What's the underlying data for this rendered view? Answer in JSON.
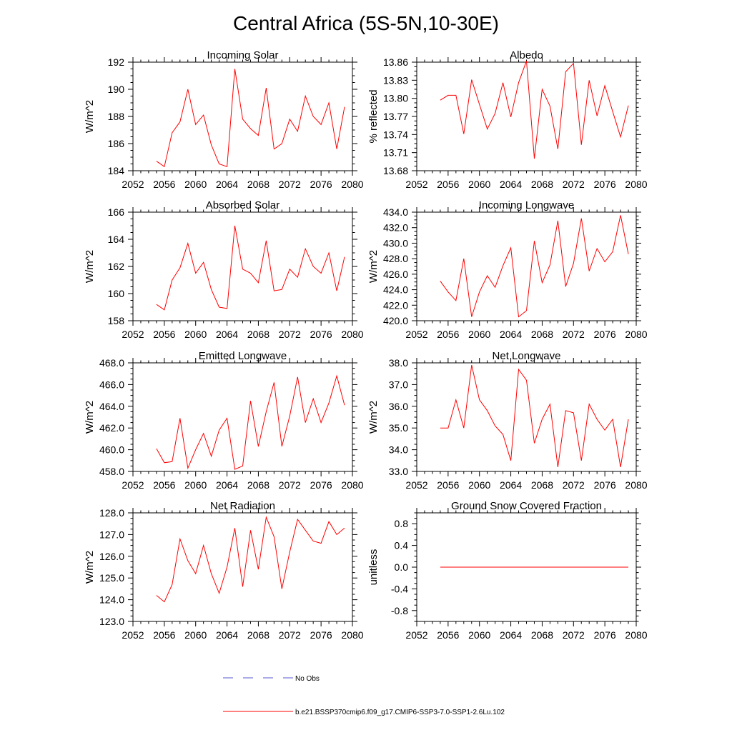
{
  "figure": {
    "title": "Central Africa (5S-5N,10-30E)",
    "legend": [
      {
        "label": "No Obs",
        "color": "#5a5ad2",
        "style": "dashed"
      },
      {
        "label": "b.e21.BSSP370cmip6.f09_g17.CMIP6-SSP3-7.0-SSP1-2.6Lu.102",
        "color": "#ff0000",
        "style": "solid"
      }
    ]
  },
  "chart_data": [
    {
      "type": "line",
      "title": "Incoming Solar",
      "xlabel": "",
      "ylabel": "W/m^2",
      "xlim": [
        2052,
        2080
      ],
      "ylim": [
        184,
        192
      ],
      "xticks": [
        2052,
        2056,
        2060,
        2064,
        2068,
        2072,
        2076,
        2080
      ],
      "yticks": [
        184,
        186,
        188,
        190,
        192
      ],
      "ydecimals": 0,
      "x": [
        2055,
        2056,
        2057,
        2058,
        2059,
        2060,
        2061,
        2062,
        2063,
        2064,
        2065,
        2066,
        2067,
        2068,
        2069,
        2070,
        2071,
        2072,
        2073,
        2074,
        2075,
        2076,
        2077,
        2078,
        2079
      ],
      "series": [
        {
          "color": "#ff0000",
          "values": [
            184.7,
            184.3,
            186.8,
            187.6,
            190.0,
            187.4,
            188.1,
            185.9,
            184.5,
            184.3,
            191.5,
            187.8,
            187.1,
            186.6,
            190.1,
            185.6,
            186.0,
            187.8,
            186.9,
            189.5,
            188.0,
            187.4,
            189.0,
            185.6,
            188.7
          ]
        }
      ]
    },
    {
      "type": "line",
      "title": "Albedo",
      "xlabel": "",
      "ylabel": "% reflected",
      "xlim": [
        2052,
        2080
      ],
      "ylim": [
        13.68,
        13.86
      ],
      "xticks": [
        2052,
        2056,
        2060,
        2064,
        2068,
        2072,
        2076,
        2080
      ],
      "yticks": [
        13.68,
        13.71,
        13.74,
        13.77,
        13.8,
        13.83,
        13.86
      ],
      "ydecimals": 2,
      "x": [
        2055,
        2056,
        2057,
        2058,
        2059,
        2060,
        2061,
        2062,
        2063,
        2064,
        2065,
        2066,
        2067,
        2068,
        2069,
        2070,
        2071,
        2072,
        2073,
        2074,
        2075,
        2076,
        2077,
        2078,
        2079
      ],
      "series": [
        {
          "color": "#ff0000",
          "values": [
            13.797,
            13.805,
            13.805,
            13.741,
            13.831,
            13.79,
            13.749,
            13.775,
            13.826,
            13.769,
            13.826,
            13.862,
            13.7,
            13.815,
            13.787,
            13.716,
            13.844,
            13.858,
            13.723,
            13.83,
            13.771,
            13.821,
            13.778,
            13.736,
            13.788
          ]
        }
      ]
    },
    {
      "type": "line",
      "title": "Absorbed Solar",
      "xlabel": "",
      "ylabel": "W/m^2",
      "xlim": [
        2052,
        2080
      ],
      "ylim": [
        158,
        166
      ],
      "xticks": [
        2052,
        2056,
        2060,
        2064,
        2068,
        2072,
        2076,
        2080
      ],
      "yticks": [
        158,
        160,
        162,
        164,
        166
      ],
      "ydecimals": 0,
      "x": [
        2055,
        2056,
        2057,
        2058,
        2059,
        2060,
        2061,
        2062,
        2063,
        2064,
        2065,
        2066,
        2067,
        2068,
        2069,
        2070,
        2071,
        2072,
        2073,
        2074,
        2075,
        2076,
        2077,
        2078,
        2079
      ],
      "series": [
        {
          "color": "#ff0000",
          "values": [
            159.2,
            158.8,
            161.0,
            161.9,
            163.7,
            161.5,
            162.3,
            160.3,
            159.0,
            158.9,
            165.0,
            161.8,
            161.5,
            160.8,
            163.9,
            160.2,
            160.3,
            161.8,
            161.2,
            163.3,
            162.0,
            161.5,
            163.0,
            160.2,
            162.7
          ]
        }
      ]
    },
    {
      "type": "line",
      "title": "Incoming Longwave",
      "xlabel": "",
      "ylabel": "W/m^2",
      "xlim": [
        2052,
        2080
      ],
      "ylim": [
        420.0,
        434.0
      ],
      "xticks": [
        2052,
        2056,
        2060,
        2064,
        2068,
        2072,
        2076,
        2080
      ],
      "yticks": [
        420.0,
        422.0,
        424.0,
        426.0,
        428.0,
        430.0,
        432.0,
        434.0
      ],
      "ydecimals": 1,
      "x": [
        2055,
        2056,
        2057,
        2058,
        2059,
        2060,
        2061,
        2062,
        2063,
        2064,
        2065,
        2066,
        2067,
        2068,
        2069,
        2070,
        2071,
        2072,
        2073,
        2074,
        2075,
        2076,
        2077,
        2078,
        2079
      ],
      "series": [
        {
          "color": "#ff0000",
          "values": [
            425.1,
            423.7,
            422.6,
            428.0,
            420.5,
            423.7,
            425.8,
            424.3,
            427.1,
            429.4,
            420.5,
            421.3,
            430.3,
            424.9,
            427.2,
            432.9,
            424.4,
            427.4,
            433.2,
            426.4,
            429.3,
            427.6,
            428.9,
            433.6,
            428.6
          ]
        }
      ]
    },
    {
      "type": "line",
      "title": "Emitted Longwave",
      "xlabel": "",
      "ylabel": "W/m^2",
      "xlim": [
        2052,
        2080
      ],
      "ylim": [
        458.0,
        468.0
      ],
      "xticks": [
        2052,
        2056,
        2060,
        2064,
        2068,
        2072,
        2076,
        2080
      ],
      "yticks": [
        458.0,
        460.0,
        462.0,
        464.0,
        466.0,
        468.0
      ],
      "ydecimals": 1,
      "x": [
        2055,
        2056,
        2057,
        2058,
        2059,
        2060,
        2061,
        2062,
        2063,
        2064,
        2065,
        2066,
        2067,
        2068,
        2069,
        2070,
        2071,
        2072,
        2073,
        2074,
        2075,
        2076,
        2077,
        2078,
        2079
      ],
      "series": [
        {
          "color": "#ff0000",
          "values": [
            460.1,
            458.8,
            458.9,
            462.9,
            458.3,
            460.0,
            461.5,
            459.4,
            461.8,
            462.9,
            458.2,
            458.5,
            464.5,
            460.3,
            463.5,
            466.2,
            460.3,
            463.1,
            466.7,
            462.5,
            464.7,
            462.5,
            464.3,
            466.8,
            464.1
          ]
        }
      ]
    },
    {
      "type": "line",
      "title": "Net Longwave",
      "xlabel": "",
      "ylabel": "W/m^2",
      "xlim": [
        2052,
        2080
      ],
      "ylim": [
        33.0,
        38.0
      ],
      "xticks": [
        2052,
        2056,
        2060,
        2064,
        2068,
        2072,
        2076,
        2080
      ],
      "yticks": [
        33.0,
        34.0,
        35.0,
        36.0,
        37.0,
        38.0
      ],
      "ydecimals": 1,
      "x": [
        2055,
        2056,
        2057,
        2058,
        2059,
        2060,
        2061,
        2062,
        2063,
        2064,
        2065,
        2066,
        2067,
        2068,
        2069,
        2070,
        2071,
        2072,
        2073,
        2074,
        2075,
        2076,
        2077,
        2078,
        2079
      ],
      "series": [
        {
          "color": "#ff0000",
          "values": [
            35.0,
            35.0,
            36.3,
            35.0,
            37.9,
            36.3,
            35.8,
            35.1,
            34.7,
            33.5,
            37.7,
            37.2,
            34.3,
            35.4,
            36.1,
            33.2,
            35.8,
            35.7,
            33.5,
            36.1,
            35.4,
            34.9,
            35.4,
            33.2,
            35.4
          ]
        }
      ]
    },
    {
      "type": "line",
      "title": "Net Radiation",
      "xlabel": "",
      "ylabel": "W/m^2",
      "xlim": [
        2052,
        2080
      ],
      "ylim": [
        123.0,
        128.0
      ],
      "xticks": [
        2052,
        2056,
        2060,
        2064,
        2068,
        2072,
        2076,
        2080
      ],
      "yticks": [
        123.0,
        124.0,
        125.0,
        126.0,
        127.0,
        128.0
      ],
      "ydecimals": 1,
      "x": [
        2055,
        2056,
        2057,
        2058,
        2059,
        2060,
        2061,
        2062,
        2063,
        2064,
        2065,
        2066,
        2067,
        2068,
        2069,
        2070,
        2071,
        2072,
        2073,
        2074,
        2075,
        2076,
        2077,
        2078,
        2079
      ],
      "series": [
        {
          "color": "#ff0000",
          "values": [
            124.2,
            123.9,
            124.7,
            126.8,
            125.8,
            125.2,
            126.5,
            125.2,
            124.3,
            125.5,
            127.3,
            124.6,
            127.2,
            125.4,
            127.8,
            126.9,
            124.5,
            126.2,
            127.7,
            127.2,
            126.7,
            126.6,
            127.6,
            127.0,
            127.3
          ]
        }
      ]
    },
    {
      "type": "line",
      "title": "Ground Snow Covered Fraction",
      "xlabel": "",
      "ylabel": "unitless",
      "xlim": [
        2052,
        2080
      ],
      "ylim": [
        -1.0,
        1.0
      ],
      "xticks": [
        2052,
        2056,
        2060,
        2064,
        2068,
        2072,
        2076,
        2080
      ],
      "yticks": [
        -0.8,
        -0.4,
        0.0,
        0.4,
        0.8
      ],
      "ydecimals": 1,
      "x": [
        2055,
        2056,
        2057,
        2058,
        2059,
        2060,
        2061,
        2062,
        2063,
        2064,
        2065,
        2066,
        2067,
        2068,
        2069,
        2070,
        2071,
        2072,
        2073,
        2074,
        2075,
        2076,
        2077,
        2078,
        2079
      ],
      "series": [
        {
          "color": "#ff0000",
          "values": [
            0,
            0,
            0,
            0,
            0,
            0,
            0,
            0,
            0,
            0,
            0,
            0,
            0,
            0,
            0,
            0,
            0,
            0,
            0,
            0,
            0,
            0,
            0,
            0,
            0
          ]
        }
      ]
    }
  ]
}
